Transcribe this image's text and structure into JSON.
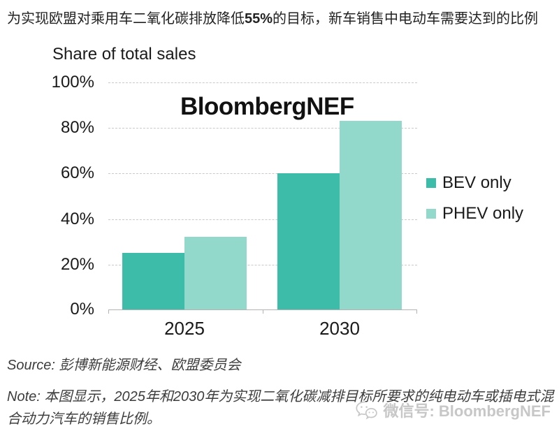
{
  "header": {
    "text_before": "为实现欧盟对乘用车二氧化碳排放降低",
    "bold_text": "55%",
    "text_after": "的目标，新车销售中电动车需要达到的比例"
  },
  "chart_data": {
    "type": "bar",
    "title": "Share of total sales",
    "watermark": "BloombergNEF",
    "categories": [
      "2025",
      "2030"
    ],
    "series": [
      {
        "name": "BEV only",
        "color": "#3dbcaa",
        "values": [
          25,
          60
        ]
      },
      {
        "name": "PHEV only",
        "color": "#92d9cc",
        "values": [
          32,
          83
        ]
      }
    ],
    "ylim": [
      0,
      100
    ],
    "yticks": [
      "100%",
      "80%",
      "60%",
      "40%",
      "20%",
      "0%"
    ],
    "ytick_values": [
      100,
      80,
      60,
      40,
      20,
      0
    ],
    "grid": "horizontal-dashed",
    "legend_position": "right"
  },
  "footer": {
    "source_label": "Source:",
    "source_text": "彭博新能源财经、欧盟委员会",
    "note_label": "Note:",
    "note_text": "本图显示，2025年和2030年为实现二氧化碳减排目标所要求的纯电动车或插电式混合动力汽车的销售比例。",
    "wechat_label": "微信号: BloombergNEF"
  }
}
